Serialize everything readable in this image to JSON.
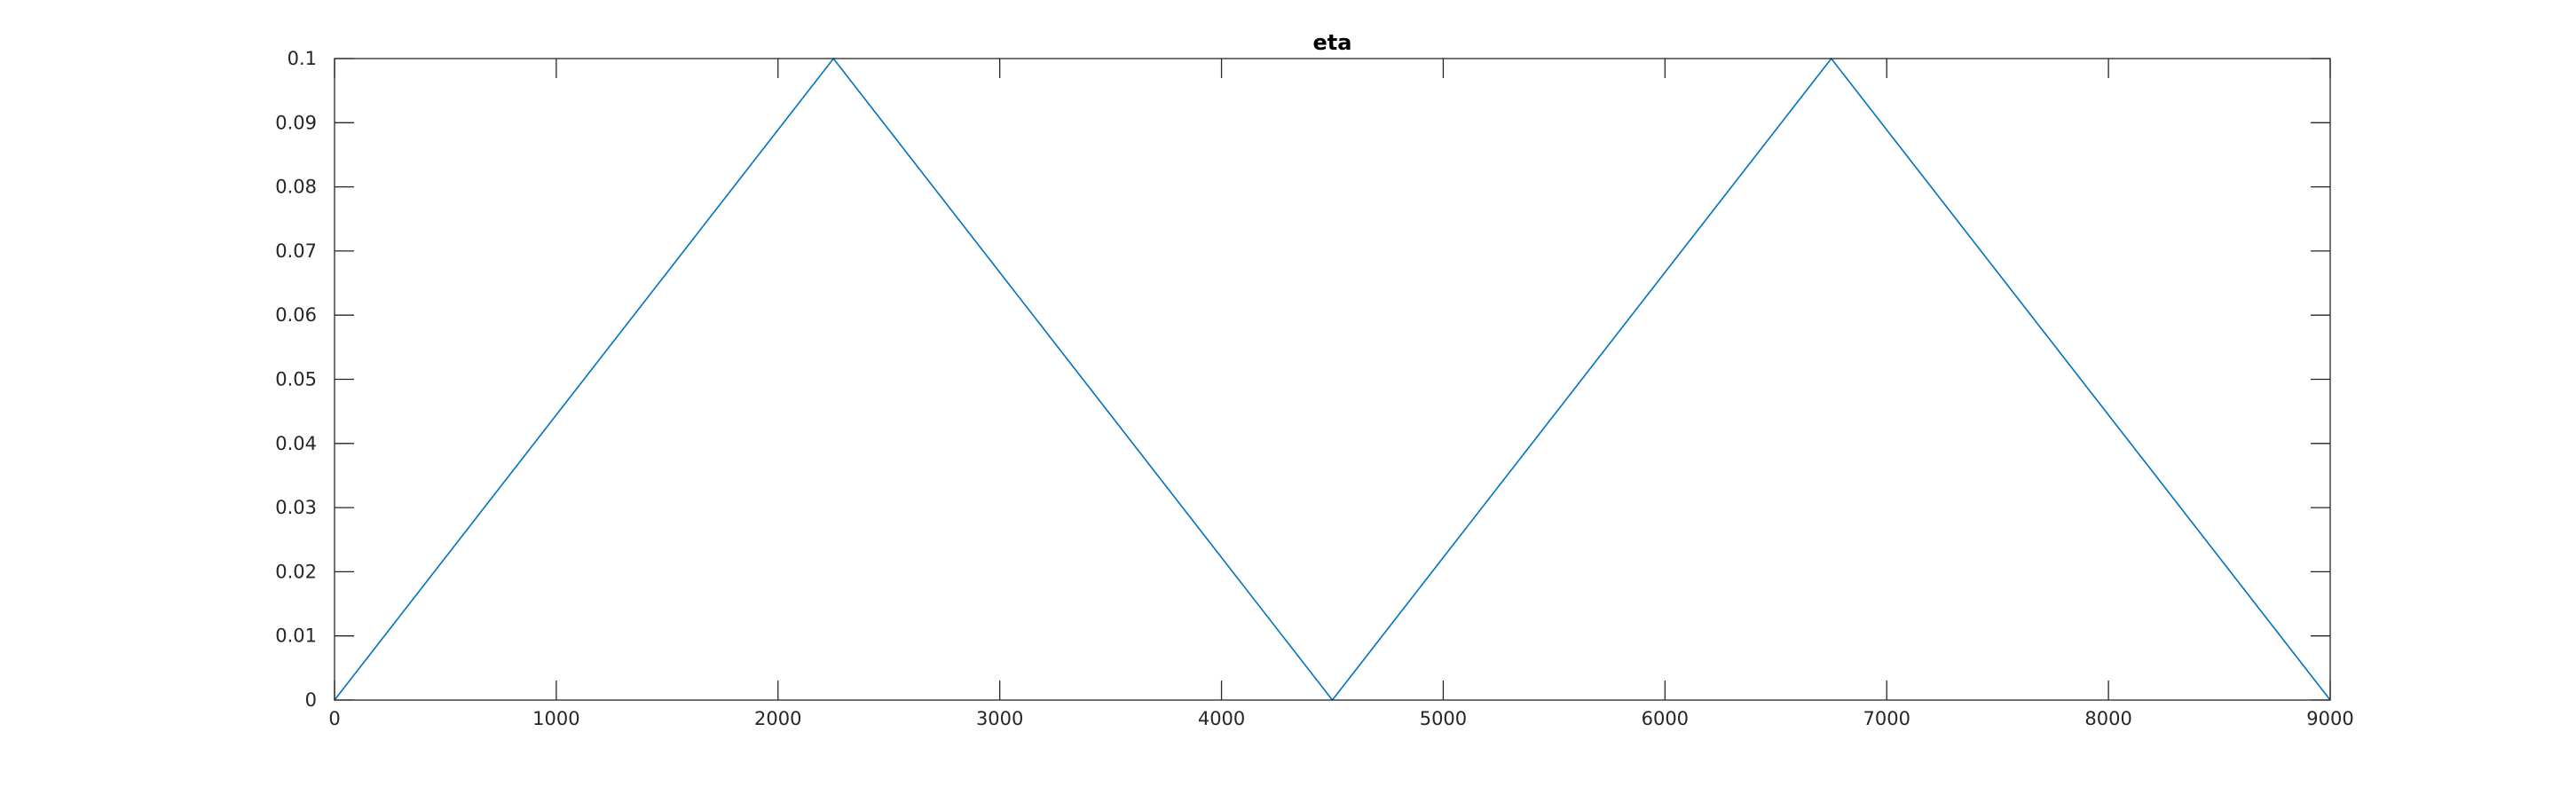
{
  "chart_data": {
    "type": "line",
    "title": "eta",
    "xlabel": "",
    "ylabel": "",
    "xlim": [
      0,
      9000
    ],
    "ylim": [
      0,
      0.1
    ],
    "xticks": [
      0,
      1000,
      2000,
      3000,
      4000,
      5000,
      6000,
      7000,
      8000,
      9000
    ],
    "xtick_labels": [
      "0",
      "1000",
      "2000",
      "3000",
      "4000",
      "5000",
      "6000",
      "7000",
      "8000",
      "9000"
    ],
    "yticks": [
      0,
      0.01,
      0.02,
      0.03,
      0.04,
      0.05,
      0.06,
      0.07,
      0.08,
      0.09,
      0.1
    ],
    "ytick_labels": [
      "0",
      "0.01",
      "0.02",
      "0.03",
      "0.04",
      "0.05",
      "0.06",
      "0.07",
      "0.08",
      "0.09",
      "0.1"
    ],
    "grid": false,
    "series": [
      {
        "x": [
          0,
          2250,
          4500,
          6750,
          9000
        ],
        "y": [
          0,
          0.1,
          0,
          0.1,
          0
        ],
        "color": "#0072BD"
      }
    ]
  }
}
